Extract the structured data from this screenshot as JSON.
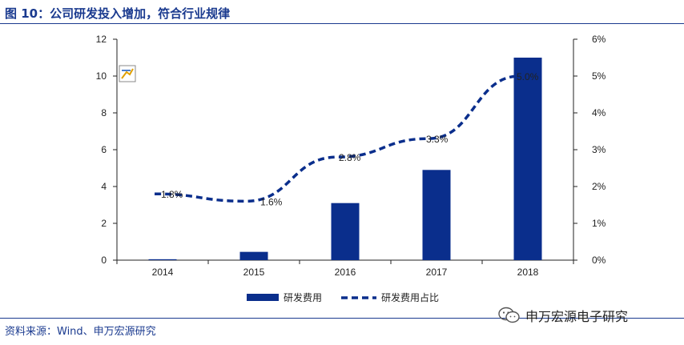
{
  "title": "图 10：公司研发投入增加，符合行业规律",
  "source": "资料来源：Wind、申万宏源研究",
  "watermark": "申万宏源电子研究",
  "chart_data": {
    "type": "bar+line",
    "categories": [
      "2014",
      "2015",
      "2016",
      "2017",
      "2018"
    ],
    "series": [
      {
        "name": "研发费用",
        "type": "bar",
        "axis": "left",
        "color": "#0a2e8c",
        "values": [
          0.05,
          0.45,
          3.1,
          4.9,
          11.0
        ]
      },
      {
        "name": "研发费用占比",
        "type": "line",
        "style": "dashed",
        "axis": "right",
        "color": "#0a2e8c",
        "values": [
          1.8,
          1.6,
          2.8,
          3.3,
          5.0
        ],
        "data_labels": [
          "1.8%",
          "1.6%",
          "2.8%",
          "3.3%",
          "5.0%"
        ]
      }
    ],
    "y_left": {
      "ylim": [
        0,
        12
      ],
      "ticks": [
        "0",
        "2",
        "4",
        "6",
        "8",
        "10",
        "12"
      ]
    },
    "y_right": {
      "ylim": [
        0,
        6
      ],
      "ticks": [
        "0%",
        "1%",
        "2%",
        "3%",
        "4%",
        "5%",
        "6%"
      ]
    },
    "grid": false,
    "legend_position": "bottom"
  }
}
